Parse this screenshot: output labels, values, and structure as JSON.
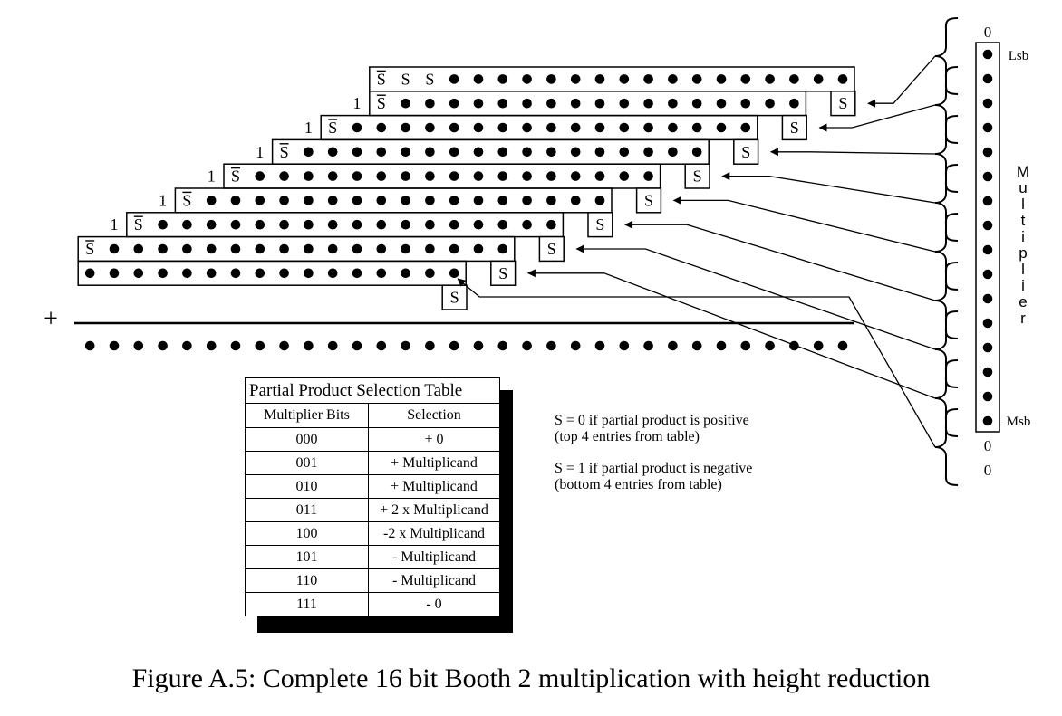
{
  "diagram": {
    "bit_labels": {
      "s": "S",
      "s_bar": "S",
      "one": "1",
      "plus": "+"
    },
    "multiplier": {
      "label": "Multiplier",
      "top_pad": "0",
      "bottom_pad": [
        "0",
        "0"
      ],
      "lsb": "Lsb",
      "msb": "Msb"
    }
  },
  "table": {
    "title": "Partial Product Selection Table",
    "headers": [
      "Multiplier Bits",
      "Selection"
    ],
    "rows": [
      [
        "000",
        "+ 0"
      ],
      [
        "001",
        "+ Multiplicand"
      ],
      [
        "010",
        "+ Multiplicand"
      ],
      [
        "011",
        "+ 2 x Multiplicand"
      ],
      [
        "100",
        "-2 x Multiplicand"
      ],
      [
        "101",
        "- Multiplicand"
      ],
      [
        "110",
        "- Multiplicand"
      ],
      [
        "111",
        "- 0"
      ]
    ]
  },
  "notes": [
    [
      "S = 0 if partial product is positive",
      "(top 4 entries from table)"
    ],
    [
      "S = 1 if partial product is negative",
      "(bottom 4 entries from table)"
    ]
  ],
  "caption": "Figure A.5: Complete 16 bit Booth 2 multiplication with height reduction"
}
